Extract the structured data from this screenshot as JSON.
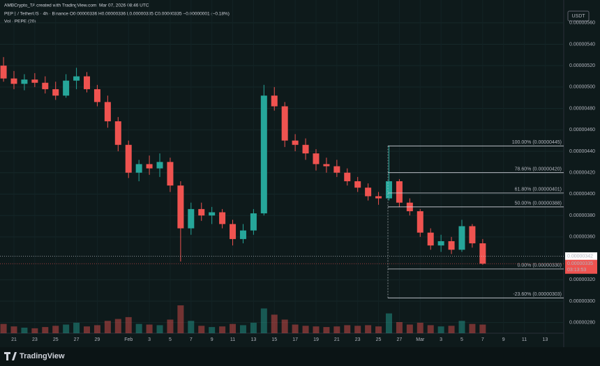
{
  "header": {
    "credit": "AMBCrypto_TA created with TradingView.com, Mar 07, 2026 08:46 UTC",
    "symbol_line": "PEPE / TetherUS · 4h · Binance  O0.00000336  H0.00000336  L0.00000335  C0.00000335  −0.00000001 (−0.18%)",
    "volume_line": "Vol · PEPE (20)",
    "currency": "USDT",
    "brand": "TradingView"
  },
  "chart_data": {
    "type": "candlestick",
    "categories": [
      null,
      "21",
      null,
      "23",
      null,
      "25",
      null,
      "27",
      null,
      "29",
      null,
      null,
      "Feb",
      null,
      "3",
      null,
      "5",
      null,
      "7",
      null,
      "9",
      null,
      "11",
      null,
      "13",
      null,
      "15",
      null,
      "17",
      null,
      "19",
      null,
      "21",
      null,
      "23",
      null,
      "25",
      null,
      "27",
      null,
      "Mar",
      null,
      "3",
      null,
      "5",
      null,
      "7",
      null,
      "9",
      null,
      "11",
      null,
      "13",
      null
    ],
    "open": [
      5.2e-06,
      5.08e-06,
      5.03e-06,
      5.07e-06,
      5.04e-06,
      4.98e-06,
      4.92e-06,
      5.06e-06,
      5.1e-06,
      4.98e-06,
      4.86e-06,
      4.68e-06,
      4.46e-06,
      4.2e-06,
      4.28e-06,
      4.24e-06,
      4.3e-06,
      4.08e-06,
      3.68e-06,
      3.86e-06,
      3.8e-06,
      3.83e-06,
      3.72e-06,
      3.58e-06,
      3.66e-06,
      3.82e-06,
      4.92e-06,
      4.82e-06,
      4.5e-06,
      4.46e-06,
      4.38e-06,
      4.28e-06,
      4.26e-06,
      4.2e-06,
      4.12e-06,
      4.06e-06,
      3.98e-06,
      3.96e-06,
      4.12e-06,
      3.92e-06,
      3.84e-06,
      3.64e-06,
      3.52e-06,
      3.56e-06,
      3.48e-06,
      3.7e-06,
      3.54e-06,
      null,
      null,
      null,
      null,
      null,
      null,
      null
    ],
    "high": [
      5.28e-06,
      5.15e-06,
      5.12e-06,
      5.13e-06,
      5.1e-06,
      5.05e-06,
      5.12e-06,
      5.18e-06,
      5.14e-06,
      5.02e-06,
      4.92e-06,
      4.72e-06,
      4.5e-06,
      4.32e-06,
      4.36e-06,
      4.38e-06,
      4.34e-06,
      4.12e-06,
      3.92e-06,
      3.92e-06,
      3.88e-06,
      3.86e-06,
      3.76e-06,
      3.72e-06,
      3.86e-06,
      5.02e-06,
      5e-06,
      4.86e-06,
      4.56e-06,
      4.52e-06,
      4.42e-06,
      4.34e-06,
      4.32e-06,
      4.24e-06,
      4.16e-06,
      4.1e-06,
      4.02e-06,
      4.45e-06,
      4.14e-06,
      3.96e-06,
      3.86e-06,
      3.68e-06,
      3.62e-06,
      3.6e-06,
      3.76e-06,
      3.72e-06,
      3.58e-06,
      null,
      null,
      null,
      null,
      null,
      null,
      null
    ],
    "low": [
      5.05e-06,
      4.98e-06,
      4.97e-06,
      5e-06,
      4.94e-06,
      4.88e-06,
      4.9e-06,
      4.98e-06,
      4.95e-06,
      4.82e-06,
      4.62e-06,
      4.4e-06,
      4.15e-06,
      4.12e-06,
      4.18e-06,
      4.16e-06,
      4.02e-06,
      3.37e-06,
      3.62e-06,
      3.75e-06,
      3.72e-06,
      3.68e-06,
      3.52e-06,
      3.54e-06,
      3.62e-06,
      3.8e-06,
      4.78e-06,
      4.44e-06,
      4.4e-06,
      4.32e-06,
      4.22e-06,
      4.2e-06,
      4.16e-06,
      4.08e-06,
      4.02e-06,
      3.94e-06,
      3.9e-06,
      3.94e-06,
      3.88e-06,
      3.8e-06,
      3.6e-06,
      3.48e-06,
      3.46e-06,
      3.44e-06,
      3.46e-06,
      3.5e-06,
      3.34e-06,
      null,
      null,
      null,
      null,
      null,
      null,
      null
    ],
    "close": [
      5.08e-06,
      5.03e-06,
      5.07e-06,
      5.04e-06,
      4.98e-06,
      4.92e-06,
      5.06e-06,
      5.1e-06,
      4.98e-06,
      4.86e-06,
      4.68e-06,
      4.46e-06,
      4.2e-06,
      4.28e-06,
      4.24e-06,
      4.3e-06,
      4.08e-06,
      3.68e-06,
      3.86e-06,
      3.8e-06,
      3.83e-06,
      3.72e-06,
      3.58e-06,
      3.66e-06,
      3.82e-06,
      4.92e-06,
      4.82e-06,
      4.5e-06,
      4.46e-06,
      4.38e-06,
      4.28e-06,
      4.26e-06,
      4.2e-06,
      4.12e-06,
      4.06e-06,
      3.98e-06,
      3.96e-06,
      4.12e-06,
      3.92e-06,
      3.84e-06,
      3.64e-06,
      3.52e-06,
      3.56e-06,
      3.48e-06,
      3.7e-06,
      3.54e-06,
      3.35e-06,
      null,
      null,
      null,
      null,
      null,
      null,
      null
    ],
    "volume": [
      30,
      22,
      18,
      16,
      20,
      24,
      28,
      34,
      22,
      26,
      40,
      46,
      52,
      30,
      28,
      26,
      44,
      90,
      40,
      24,
      20,
      22,
      30,
      26,
      34,
      80,
      60,
      44,
      28,
      24,
      22,
      20,
      22,
      26,
      24,
      26,
      22,
      64,
      36,
      28,
      34,
      26,
      22,
      24,
      40,
      30,
      28,
      null,
      null,
      null,
      null,
      null,
      null,
      null
    ],
    "up_color": "#26a69a",
    "down_color": "#ef5350",
    "ylim": [
      2.7e-06,
      5.67e-06
    ],
    "yticks": [
      {
        "value": 5.6e-06,
        "label": "0.00000560"
      },
      {
        "value": 5.4e-06,
        "label": "0.00000540"
      },
      {
        "value": 5.2e-06,
        "label": "0.00000520"
      },
      {
        "value": 5e-06,
        "label": "0.00000500"
      },
      {
        "value": 4.8e-06,
        "label": "0.00000480"
      },
      {
        "value": 4.6e-06,
        "label": "0.00000460"
      },
      {
        "value": 4.4e-06,
        "label": "0.00000440"
      },
      {
        "value": 4.2e-06,
        "label": "0.00000420"
      },
      {
        "value": 4e-06,
        "label": "0.00000400"
      },
      {
        "value": 3.8e-06,
        "label": "0.00000380"
      },
      {
        "value": 3.6e-06,
        "label": "0.00000360"
      },
      {
        "value": 3.2e-06,
        "label": "0.00000320"
      },
      {
        "value": 3e-06,
        "label": "0.00000300"
      },
      {
        "value": 2.8e-06,
        "label": "0.00000280"
      }
    ],
    "fib_levels": [
      {
        "value": 4.45e-06,
        "label": "100.00% (0.00000445)"
      },
      {
        "value": 4.2e-06,
        "label": "78.60% (0.00000420)"
      },
      {
        "value": 4.01e-06,
        "label": "61.80% (0.00000401)"
      },
      {
        "value": 3.88e-06,
        "label": "50.00% (0.00000388)"
      },
      {
        "value": 3.3e-06,
        "label": "0.00% (0.00000330)"
      },
      {
        "value": 3.03e-06,
        "label": "-23.60% (0.00000303)"
      }
    ],
    "marker_price": {
      "value": 3.42e-06,
      "label": "0.00000342"
    },
    "last_price": {
      "value": 3.35e-06,
      "label": "0.00000335"
    },
    "countdown": "03:13:53"
  }
}
